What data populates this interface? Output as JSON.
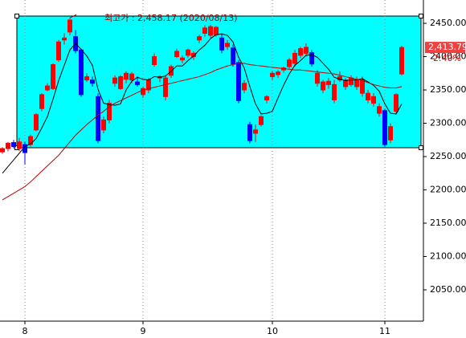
{
  "chart_data": {
    "type": "candlestick",
    "categories": [
      null,
      null,
      null,
      null,
      "8",
      null,
      null,
      null,
      null,
      null,
      null,
      null,
      null,
      null,
      null,
      null,
      null,
      null,
      null,
      null,
      null,
      null,
      null,
      null,
      null,
      "9",
      null,
      null,
      null,
      null,
      null,
      null,
      null,
      null,
      null,
      null,
      null,
      null,
      null,
      null,
      null,
      null,
      null,
      null,
      null,
      null,
      null,
      null,
      "10",
      null,
      null,
      null,
      null,
      null,
      null,
      null,
      null,
      null,
      null,
      null,
      null,
      null,
      null,
      null,
      null,
      null,
      null,
      null,
      "11",
      null,
      null,
      null
    ],
    "open": [
      2257,
      2262,
      2271,
      2262,
      2268,
      2268,
      2290,
      2322,
      2350,
      2352,
      2395,
      2425,
      2437,
      2430,
      2410,
      2365,
      2365,
      2340,
      2290,
      2305,
      2360,
      2352,
      2366,
      2365,
      2362,
      2343,
      2350,
      2388,
      2368,
      2340,
      2372,
      2400,
      2395,
      2402,
      2400,
      2425,
      2435,
      2432,
      2433,
      2428,
      2415,
      2413,
      2391,
      2350,
      2298,
      2285,
      2298,
      2335,
      2370,
      2373,
      2380,
      2385,
      2390,
      2402,
      2405,
      2406,
      2360,
      2350,
      2358,
      2335,
      2365,
      2355,
      2358,
      2355,
      2345,
      2335,
      2330,
      2315,
      2319,
      2275,
      2318,
      2374
    ],
    "high": [
      2264,
      2272,
      2275,
      2278,
      2272,
      2283,
      2315,
      2345,
      2360,
      2390,
      2425,
      2435,
      2458.17,
      2440,
      2412,
      2375,
      2370,
      2345,
      2310,
      2335,
      2372,
      2372,
      2378,
      2377,
      2370,
      2355,
      2368,
      2405,
      2372,
      2372,
      2388,
      2412,
      2402,
      2412,
      2408,
      2433,
      2447,
      2448,
      2446,
      2435,
      2425,
      2418,
      2395,
      2365,
      2302,
      2298,
      2312,
      2342,
      2378,
      2380,
      2385,
      2398,
      2410,
      2415,
      2420,
      2410,
      2380,
      2365,
      2368,
      2365,
      2378,
      2368,
      2372,
      2370,
      2370,
      2350,
      2345,
      2330,
      2322,
      2300,
      2345,
      2416
    ],
    "low": [
      2254,
      2258,
      2262,
      2258,
      2238,
      2265,
      2288,
      2318,
      2348,
      2350,
      2392,
      2418,
      2432,
      2405,
      2340,
      2362,
      2355,
      2270,
      2285,
      2300,
      2355,
      2350,
      2360,
      2360,
      2355,
      2338,
      2345,
      2385,
      2362,
      2334,
      2368,
      2398,
      2390,
      2398,
      2395,
      2420,
      2430,
      2428,
      2430,
      2405,
      2410,
      2385,
      2330,
      2345,
      2270,
      2272,
      2295,
      2330,
      2365,
      2368,
      2376,
      2382,
      2385,
      2398,
      2400,
      2385,
      2355,
      2345,
      2352,
      2330,
      2362,
      2350,
      2355,
      2350,
      2340,
      2330,
      2325,
      2310,
      2265,
      2270,
      2315,
      2372
    ],
    "close": [
      2262,
      2270,
      2265,
      2272,
      2256,
      2280,
      2313,
      2343,
      2356,
      2388,
      2422,
      2428,
      2455,
      2409,
      2343,
      2370,
      2360,
      2274,
      2305,
      2330,
      2368,
      2370,
      2375,
      2374,
      2358,
      2352,
      2365,
      2400,
      2370,
      2368,
      2385,
      2408,
      2398,
      2410,
      2405,
      2430,
      2443,
      2445,
      2444,
      2410,
      2420,
      2389,
      2334,
      2360,
      2274,
      2290,
      2310,
      2340,
      2375,
      2377,
      2383,
      2395,
      2405,
      2412,
      2414,
      2389,
      2375,
      2362,
      2363,
      2358,
      2370,
      2365,
      2368,
      2365,
      2365,
      2345,
      2340,
      2325,
      2268,
      2295,
      2343,
      2413.79
    ],
    "up_color": "#ff0000",
    "down_color": "#0000ff",
    "lines": [
      {
        "color": "#000000",
        "values": [
          2225,
          2235,
          2245,
          2255,
          2265,
          2269,
          2277,
          2293,
          2310,
          2336,
          2364,
          2387,
          2410,
          2420,
          2411,
          2401,
          2387,
          2351,
          2330,
          2328,
          2327,
          2329,
          2350,
          2363,
          2369,
          2366,
          2365,
          2370,
          2369,
          2371,
          2378,
          2386,
          2386,
          2394,
          2401,
          2410,
          2417,
          2427,
          2433,
          2434,
          2432,
          2422,
          2399,
          2383,
          2355,
          2329,
          2314,
          2315,
          2318,
          2338,
          2357,
          2374,
          2387,
          2394,
          2402,
          2403,
          2399,
          2390,
          2381,
          2369,
          2366,
          2364,
          2365,
          2365,
          2367,
          2362,
          2357,
          2348,
          2329,
          2315,
          2314,
          2329
        ]
      },
      {
        "color": "#c00000",
        "values": [
          2185,
          2190,
          2195,
          2200,
          2205,
          2212,
          2220,
          2228,
          2236,
          2244,
          2252,
          2262,
          2272,
          2282,
          2290,
          2298,
          2305,
          2312,
          2318,
          2325,
          2330,
          2334,
          2338,
          2342,
          2346,
          2350,
          2352,
          2354,
          2356,
          2358,
          2360,
          2362,
          2364,
          2366,
          2368,
          2370,
          2373,
          2376,
          2380,
          2383,
          2386,
          2388,
          2390,
          2390,
          2388,
          2387,
          2386,
          2385,
          2384,
          2383,
          2382,
          2381,
          2380,
          2380,
          2379,
          2378,
          2377,
          2376,
          2375,
          2374,
          2372,
          2370,
          2368,
          2366,
          2364,
          2361,
          2358,
          2356,
          2354,
          2353,
          2353,
          2355
        ]
      }
    ],
    "ylim": [
      2003,
      2485
    ],
    "yticks": [
      {
        "value": 2050,
        "label": "2050.00"
      },
      {
        "value": 2100,
        "label": "2100.00"
      },
      {
        "value": 2150,
        "label": "2150.00"
      },
      {
        "value": 2200,
        "label": "2200.00"
      },
      {
        "value": 2250,
        "label": "2250.00"
      },
      {
        "value": 2300,
        "label": "2300.00"
      },
      {
        "value": 2350,
        "label": "2350.00"
      },
      {
        "value": 2400,
        "label": "2400.00"
      },
      {
        "value": 2450,
        "label": "2450.00"
      }
    ],
    "grid": "x",
    "annotation": "최고가 : 2,458.17 (2020/08/13)",
    "last_label": "2,413.79",
    "change_label": "2.40%"
  }
}
